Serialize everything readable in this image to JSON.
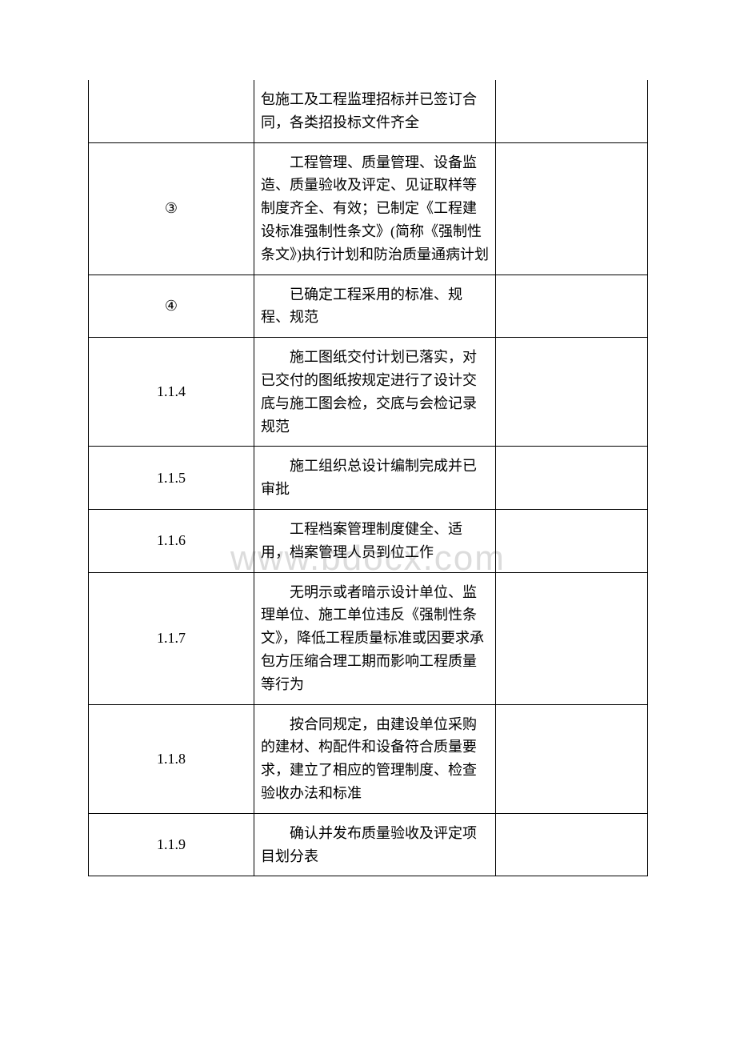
{
  "watermark": "www.bdocx.com",
  "table": {
    "columns": {
      "col1_width": 190,
      "col2_width": 285
    },
    "border_color": "#000000",
    "background_color": "#ffffff",
    "text_color": "#000000",
    "font_size": 18,
    "rows": [
      {
        "id": "",
        "content": "包施工及工程监理招标并已签订合同，各类招投标文件齐全",
        "remark": ""
      },
      {
        "id": "③",
        "content": "工程管理、质量管理、设备监造、质量验收及评定、见证取样等制度齐全、有效；已制定《工程建设标准强制性条文》(简称《强制性条文》)执行计划和防治质量通病计划",
        "remark": ""
      },
      {
        "id": "④",
        "content": "已确定工程采用的标准、规程、规范",
        "remark": ""
      },
      {
        "id": "1.1.4",
        "content": "施工图纸交付计划已落实，对已交付的图纸按规定进行了设计交底与施工图会检，交底与会检记录规范",
        "remark": ""
      },
      {
        "id": "1.1.5",
        "content": "施工组织总设计编制完成并已审批",
        "remark": ""
      },
      {
        "id": "1.1.6",
        "content": "工程档案管理制度健全、适用，档案管理人员到位工作",
        "remark": ""
      },
      {
        "id": "1.1.7",
        "content": "无明示或者暗示设计单位、监理单位、施工单位违反《强制性条文》，降低工程质量标准或因要求承包方压缩合理工期而影响工程质量等行为",
        "remark": ""
      },
      {
        "id": "1.1.8",
        "content": "按合同规定，由建设单位采购的建材、构配件和设备符合质量要求，建立了相应的管理制度、检查验收办法和标准",
        "remark": ""
      },
      {
        "id": "1.1.9",
        "content": "确认并发布质量验收及评定项目划分表",
        "remark": ""
      }
    ]
  }
}
